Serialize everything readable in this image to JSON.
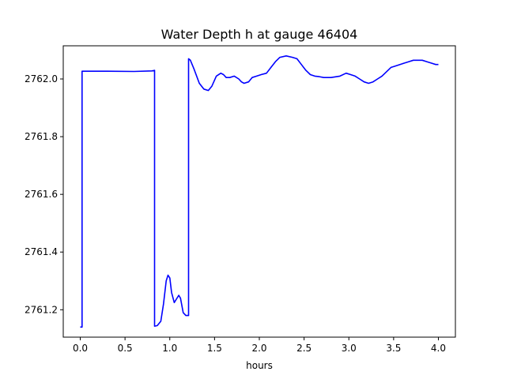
{
  "chart_data": {
    "type": "line",
    "title": "Water Depth h at gauge 46404",
    "xlabel": "hours",
    "ylabel": "",
    "xlim": [
      -0.19,
      4.19
    ],
    "ylim": [
      2761.105,
      2762.115
    ],
    "xticks": [
      0.0,
      0.5,
      1.0,
      1.5,
      2.0,
      2.5,
      3.0,
      3.5,
      4.0
    ],
    "xtick_labels": [
      "0.0",
      "0.5",
      "1.0",
      "1.5",
      "2.0",
      "2.5",
      "3.0",
      "3.5",
      "4.0"
    ],
    "yticks": [
      2761.2,
      2761.4,
      2761.6,
      2761.8,
      2762.0
    ],
    "ytick_labels": [
      "2761.2",
      "2761.4",
      "2761.6",
      "2761.8",
      "2762.0"
    ],
    "grid": false,
    "series": [
      {
        "name": "",
        "color": "#0000ff",
        "x": [
          0.0,
          0.02,
          0.02,
          0.3,
          0.6,
          0.8,
          0.83,
          0.83,
          0.86,
          0.9,
          0.93,
          0.96,
          0.98,
          1.0,
          1.02,
          1.05,
          1.07,
          1.1,
          1.12,
          1.15,
          1.18,
          1.21,
          1.21,
          1.23,
          1.27,
          1.33,
          1.38,
          1.43,
          1.47,
          1.52,
          1.57,
          1.6,
          1.63,
          1.67,
          1.72,
          1.77,
          1.8,
          1.83,
          1.88,
          1.92,
          1.97,
          2.02,
          2.08,
          2.13,
          2.18,
          2.23,
          2.3,
          2.37,
          2.42,
          2.47,
          2.52,
          2.57,
          2.62,
          2.67,
          2.72,
          2.8,
          2.9,
          2.97,
          3.02,
          3.07,
          3.12,
          3.17,
          3.22,
          3.27,
          3.32,
          3.37,
          3.42,
          3.47,
          3.52,
          3.57,
          3.62,
          3.67,
          3.72,
          3.77,
          3.82,
          3.87,
          3.92,
          3.97,
          4.0
        ],
        "y": [
          2761.14,
          2761.14,
          2762.027,
          2762.027,
          2762.026,
          2762.028,
          2762.03,
          2761.143,
          2761.145,
          2761.16,
          2761.22,
          2761.3,
          2761.32,
          2761.31,
          2761.26,
          2761.225,
          2761.235,
          2761.25,
          2761.24,
          2761.19,
          2761.18,
          2761.18,
          2762.07,
          2762.065,
          2762.035,
          2761.985,
          2761.965,
          2761.96,
          2761.975,
          2762.01,
          2762.02,
          2762.015,
          2762.005,
          2762.005,
          2762.01,
          2762.0,
          2761.99,
          2761.985,
          2761.99,
          2762.005,
          2762.01,
          2762.015,
          2762.02,
          2762.04,
          2762.06,
          2762.075,
          2762.08,
          2762.075,
          2762.07,
          2762.05,
          2762.03,
          2762.015,
          2762.01,
          2762.008,
          2762.005,
          2762.005,
          2762.01,
          2762.02,
          2762.015,
          2762.01,
          2762.0,
          2761.99,
          2761.985,
          2761.99,
          2762.0,
          2762.01,
          2762.025,
          2762.04,
          2762.045,
          2762.05,
          2762.055,
          2762.06,
          2762.065,
          2762.065,
          2762.065,
          2762.06,
          2762.055,
          2762.05,
          2762.05
        ]
      }
    ]
  }
}
